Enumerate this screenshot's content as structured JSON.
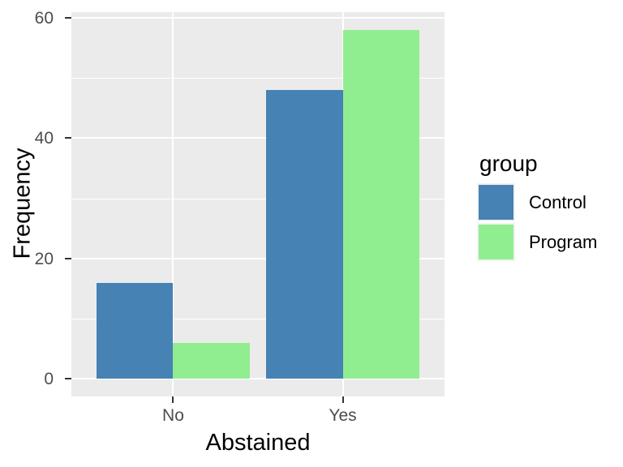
{
  "chart_data": {
    "type": "bar",
    "bar_layout": "dodge",
    "title": "",
    "xlabel": "Abstained",
    "ylabel": "Frequency",
    "categories": [
      "No",
      "Yes"
    ],
    "series": [
      {
        "name": "Control",
        "color": "#4682B4",
        "values": [
          16,
          48
        ]
      },
      {
        "name": "Program",
        "color": "#90EE90",
        "values": [
          6,
          58
        ]
      }
    ],
    "legend": {
      "title": "group",
      "position": "right",
      "entries": [
        "Control",
        "Program"
      ]
    },
    "axes": {
      "y_ticks": [
        0,
        20,
        40,
        60
      ],
      "y_minor_ticks": [
        10,
        30,
        50
      ],
      "ylim": [
        -2.9,
        60.9
      ],
      "x_type": "discrete",
      "grid": "major-and-minor-horizontal, major-vertical"
    },
    "style": {
      "panel_bg": "#EBEBEB",
      "grid_color": "#FFFFFF",
      "tick_mark_color": "#333333",
      "tick_label_color": "#4D4D4D",
      "title_color": "#000000",
      "figure_bg": "#FFFFFF"
    }
  }
}
